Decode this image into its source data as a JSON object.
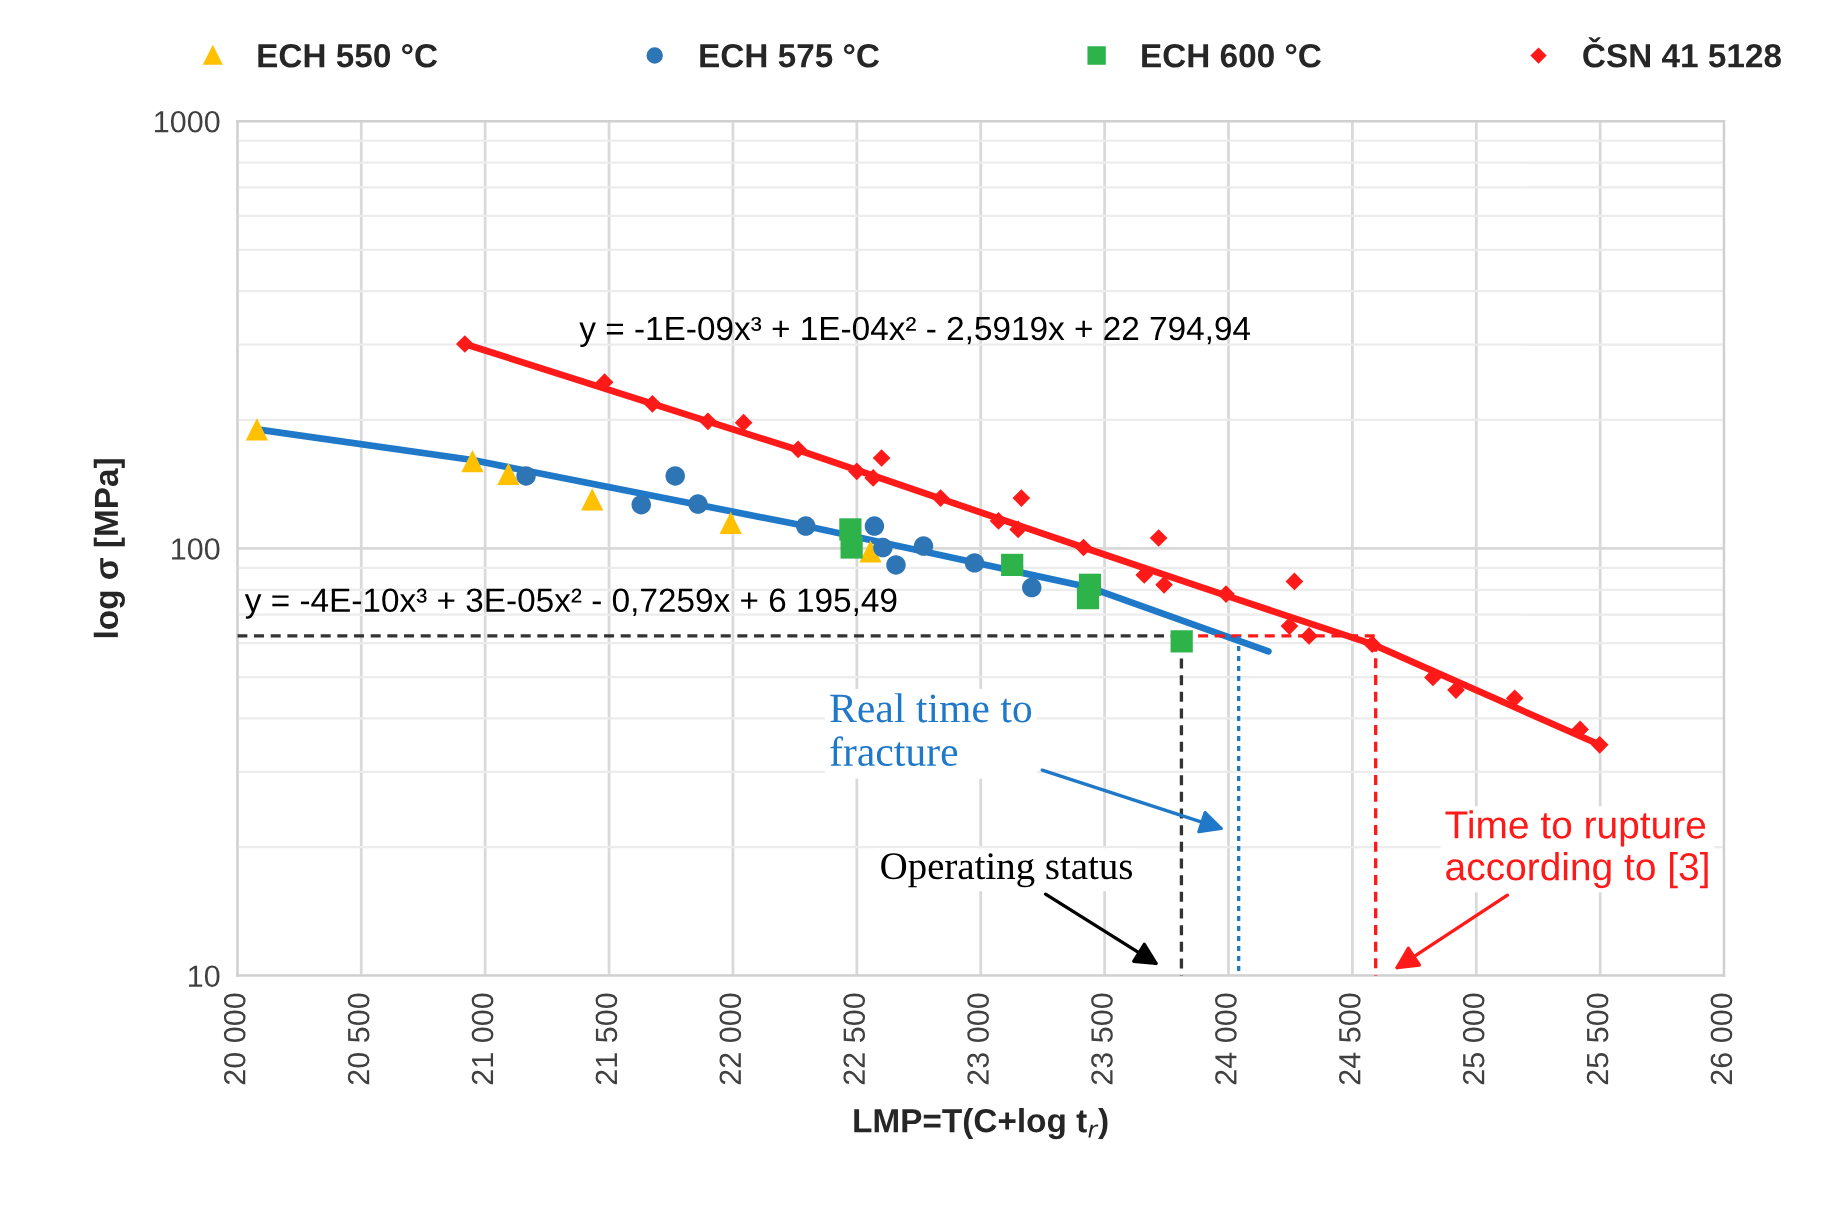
{
  "chart_data": {
    "type": "scatter",
    "xlabel": "LMP=T(C+log t$_{r}$)",
    "ylabel": "log σ [MPa]",
    "log": "y",
    "xlim": [
      20000,
      26000
    ],
    "ylim": [
      10,
      1000
    ],
    "xticks": [
      {
        "value": 20000,
        "label": "20 000"
      },
      {
        "value": 20500,
        "label": "20 500"
      },
      {
        "value": 21000,
        "label": "21 000"
      },
      {
        "value": 21500,
        "label": "21 500"
      },
      {
        "value": 22000,
        "label": "22 000"
      },
      {
        "value": 22500,
        "label": "22 500"
      },
      {
        "value": 23000,
        "label": "23 000"
      },
      {
        "value": 23500,
        "label": "23 500"
      },
      {
        "value": 24000,
        "label": "24 000"
      },
      {
        "value": 24500,
        "label": "24 500"
      },
      {
        "value": 25000,
        "label": "25 000"
      },
      {
        "value": 25500,
        "label": "25 500"
      },
      {
        "value": 26000,
        "label": "26 000"
      }
    ],
    "yticks": [
      10,
      100,
      1000
    ],
    "grid": true,
    "legend": "top",
    "series": [
      {
        "type": "line",
        "color": "#ff1a1a",
        "marker": "none",
        "line_style": "solid",
        "x": [
          20918,
          22263,
          23415,
          24000,
          24580,
          25498
        ],
        "values": [
          301,
          170,
          100.5,
          77.2,
          59.7,
          34.7
        ]
      },
      {
        "type": "line",
        "color": "#1f78c8",
        "marker": "none",
        "line_style": "solid",
        "x": [
          20079,
          20949,
          22294,
          23441,
          24161
        ],
        "values": [
          190,
          161,
          112.8,
          81,
          57.4
        ]
      },
      {
        "name": "ECH 550 °C",
        "marker": "triangle",
        "color": "#ffc000",
        "x": [
          20079,
          20949,
          21094,
          21432,
          21991,
          22555
        ],
        "values": [
          190,
          160,
          149.4,
          130.3,
          114.8,
          98.4
        ]
      },
      {
        "name": "ECH 575 °C",
        "marker": "circle",
        "color": "#2e75b6",
        "x": [
          21165,
          21630,
          21767,
          21859,
          22294,
          22571,
          22605,
          22658,
          22769,
          22975,
          23206
        ],
        "values": [
          147.8,
          126.6,
          147.8,
          127,
          112.8,
          112.8,
          100.5,
          91.5,
          101.3,
          92.5,
          81
        ]
      },
      {
        "name": "ECH 600 °C",
        "marker": "square",
        "color": "#2db34a",
        "x": [
          22474,
          22479,
          23127,
          23441,
          23433,
          23811
        ],
        "values": [
          110.8,
          100.5,
          91.5,
          82.2,
          76.5,
          60.6
        ]
      },
      {
        "name": "ČSN 41 5128",
        "marker": "diamond",
        "color": "#ff1a1a",
        "x": [
          20918,
          21482,
          21675,
          21899,
          22043,
          22263,
          22500,
          22566,
          22600,
          22838,
          23072,
          23151,
          23164,
          23415,
          23660,
          23718,
          23740,
          23990,
          24266,
          24246,
          24325,
          24580,
          24825,
          24918,
          25155,
          25419,
          25498
        ],
        "values": [
          301,
          245,
          218,
          198.4,
          197,
          170.6,
          151.5,
          146.2,
          162.8,
          131.2,
          116,
          110.8,
          131.2,
          100.5,
          86.7,
          105.8,
          82.2,
          78.2,
          83.7,
          65.8,
          62.4,
          59.7,
          49.9,
          46.6,
          44.6,
          37.7,
          34.7
        ]
      },
      {
        "type": "line",
        "color": "#333333",
        "marker": "none",
        "line_style": "dashed",
        "x": [
          20000,
          23810,
          23810
        ],
        "values": [
          62.4,
          62.4,
          10
        ]
      },
      {
        "type": "line",
        "color": "#ff1a1a",
        "marker": "none",
        "line_style": "dashed",
        "x": [
          23810,
          24594,
          24594
        ],
        "values": [
          62.4,
          62.4,
          10
        ]
      },
      {
        "type": "line",
        "color": "#1f78c8",
        "marker": "none",
        "line_style": "dotted",
        "x": [
          24041,
          24041
        ],
        "values": [
          62.4,
          10
        ]
      }
    ],
    "annotations": [
      "y = -1E-09x³ + 1E-04x² - 2,5919x + 22 794,94",
      "y = -4E-10x³ + 3E-05x² - 0,7259x + 6 195,49",
      "Real time to\nfracture",
      "Operating status",
      "Time to rupture\naccording to [3]"
    ]
  }
}
